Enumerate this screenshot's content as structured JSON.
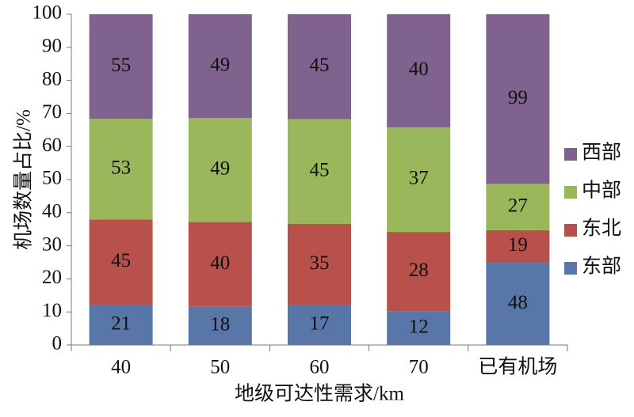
{
  "chart_data": {
    "type": "bar",
    "stacking": "percent",
    "y_label": "机场数量占比/%",
    "x_label": "地级可达性需求/km",
    "categories": [
      "40",
      "50",
      "60",
      "70",
      "已有机场"
    ],
    "series": [
      {
        "name": "东部",
        "color": "#5876a8",
        "values": [
          21,
          18,
          17,
          12,
          48
        ]
      },
      {
        "name": "东北",
        "color": "#b8504c",
        "values": [
          45,
          40,
          35,
          28,
          19
        ]
      },
      {
        "name": "中部",
        "color": "#9ab75b",
        "values": [
          53,
          49,
          45,
          37,
          27
        ]
      },
      {
        "name": "西部",
        "color": "#80628f",
        "values": [
          55,
          49,
          45,
          40,
          99
        ]
      }
    ],
    "ylim": [
      0,
      100
    ],
    "yticks": [
      0,
      10,
      20,
      30,
      40,
      50,
      60,
      70,
      80,
      90,
      100
    ]
  }
}
